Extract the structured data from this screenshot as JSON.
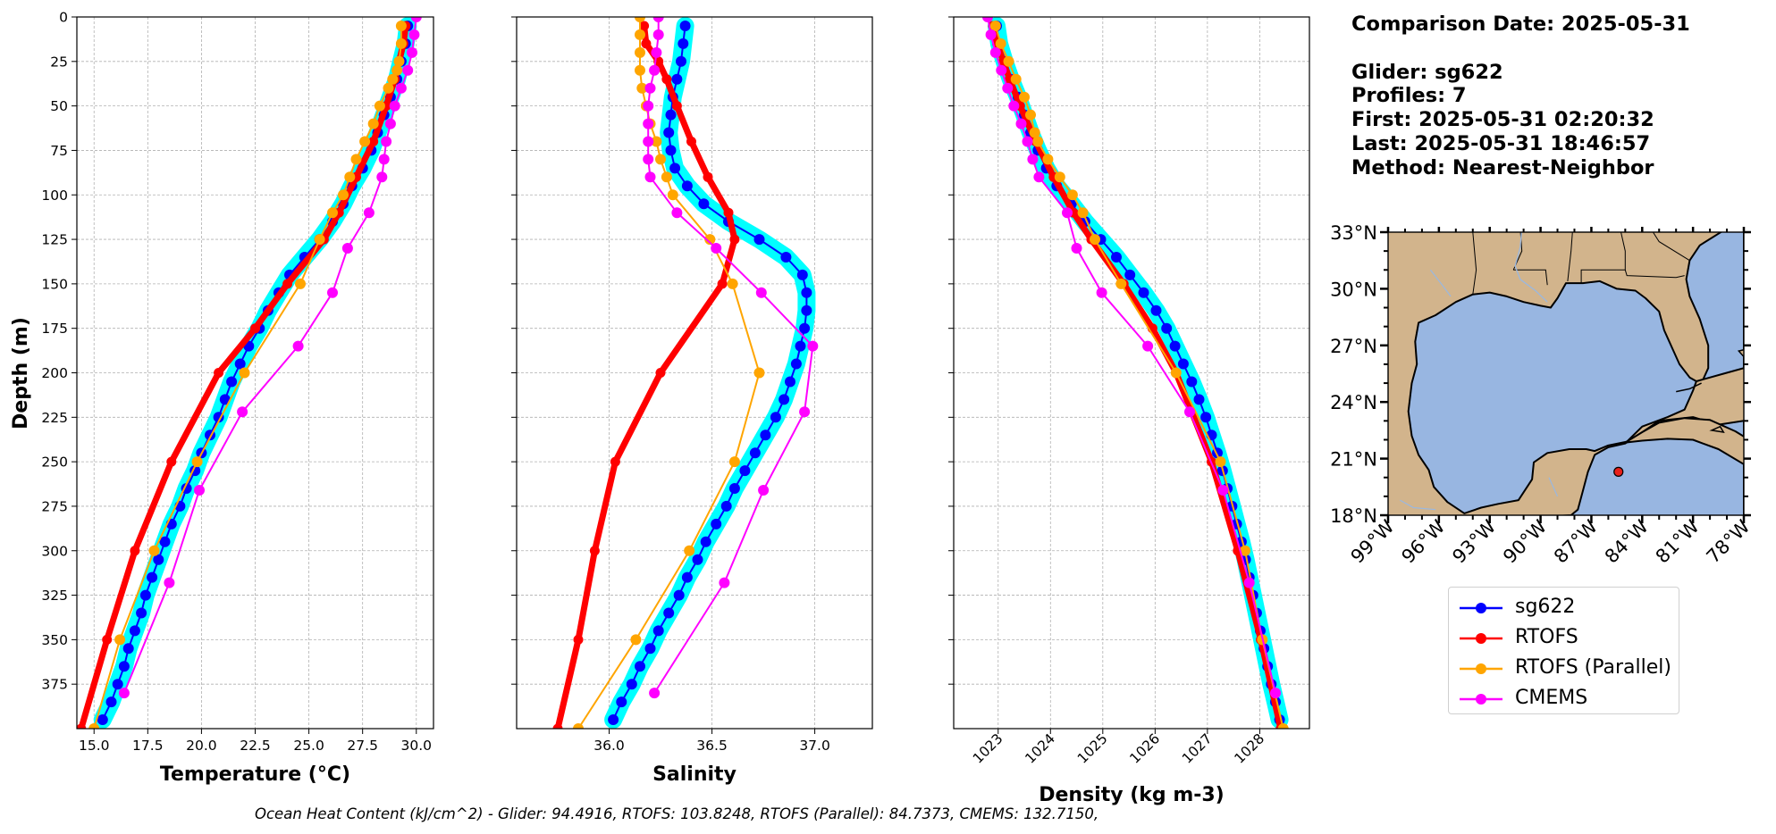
{
  "footer_text": "Ocean Heat Content (kJ/cm^2) - Glider: 94.4916,  RTOFS: 103.8248,  RTOFS (Parallel): 84.7373,  CMEMS: 132.7150,",
  "info_lines": [
    "Comparison Date: 2025-05-31",
    "",
    "Glider: sg622",
    "Profiles: 7",
    "First: 2025-05-31 02:20:32",
    "Last: 2025-05-31 18:46:57",
    "Method: Nearest-Neighbor"
  ],
  "colors": {
    "sg622": "#0000ff",
    "sg622_envelope": "#00ffff",
    "RTOFS": "#ff0000",
    "RTOFS_parallel": "#ffa500",
    "CMEMS": "#ff00ff",
    "grid": "#b0b0b0",
    "land": "#d2b48c",
    "water": "#98b6e1"
  },
  "legend": [
    {
      "name": "sg622",
      "color": "#0000ff"
    },
    {
      "name": "RTOFS",
      "color": "#ff0000"
    },
    {
      "name": "RTOFS (Parallel)",
      "color": "#ffa500"
    },
    {
      "name": "CMEMS",
      "color": "#ff00ff"
    }
  ],
  "chart_data": [
    {
      "type": "line",
      "xlabel": "Temperature (°C)",
      "ylabel": "Depth (m)",
      "xlim": [
        14.2,
        30.8
      ],
      "ylim": [
        400,
        0
      ],
      "y_inverted": true,
      "grid": true,
      "xticks": [
        15.0,
        17.5,
        20.0,
        22.5,
        25.0,
        27.5,
        30.0
      ],
      "xtick_labels": [
        "15.0",
        "17.5",
        "20.0",
        "22.5",
        "25.0",
        "27.5",
        "30.0"
      ],
      "yticks": [
        0,
        25,
        50,
        75,
        100,
        125,
        150,
        175,
        200,
        225,
        250,
        275,
        300,
        325,
        350,
        375
      ],
      "series": [
        {
          "name": "sg622",
          "depth": [
            5,
            15,
            25,
            35,
            45,
            55,
            65,
            75,
            85,
            95,
            105,
            115,
            125,
            135,
            145,
            155,
            165,
            175,
            185,
            195,
            205,
            215,
            225,
            235,
            245,
            255,
            265,
            275,
            285,
            295,
            305,
            315,
            325,
            335,
            345,
            355,
            365,
            375,
            385,
            395
          ],
          "values": [
            29.6,
            29.5,
            29.3,
            29.1,
            28.8,
            28.5,
            28.2,
            27.9,
            27.5,
            27.0,
            26.6,
            26.1,
            25.5,
            24.8,
            24.1,
            23.6,
            23.1,
            22.7,
            22.2,
            21.8,
            21.4,
            21.1,
            20.8,
            20.4,
            20.0,
            19.7,
            19.3,
            19.0,
            18.6,
            18.3,
            18.0,
            17.7,
            17.4,
            17.2,
            16.9,
            16.6,
            16.4,
            16.1,
            15.8,
            15.4
          ]
        },
        {
          "name": "RTOFS",
          "depth": [
            5,
            15,
            25,
            35,
            50,
            70,
            90,
            110,
            125,
            150,
            175,
            200,
            250,
            300,
            350,
            400
          ],
          "values": [
            29.5,
            29.4,
            29.2,
            29.0,
            28.6,
            28.0,
            27.2,
            26.4,
            25.7,
            24.0,
            22.5,
            20.8,
            18.6,
            16.9,
            15.6,
            14.4
          ]
        },
        {
          "name": "RTOFS (Parallel)",
          "depth": [
            5,
            15,
            25,
            30,
            35,
            40,
            50,
            60,
            70,
            80,
            90,
            100,
            110,
            125,
            150,
            200,
            250,
            300,
            350,
            400
          ],
          "values": [
            29.3,
            29.3,
            29.2,
            29.1,
            28.9,
            28.7,
            28.3,
            28.0,
            27.6,
            27.2,
            26.9,
            26.6,
            26.1,
            25.5,
            24.6,
            22.0,
            19.8,
            17.8,
            16.2,
            15.0
          ]
        },
        {
          "name": "CMEMS",
          "depth": [
            0,
            10,
            20,
            30,
            40,
            50,
            60,
            70,
            80,
            90,
            110,
            130,
            155,
            185,
            222,
            266,
            318,
            380
          ],
          "values": [
            30.0,
            29.9,
            29.8,
            29.6,
            29.3,
            29.0,
            28.8,
            28.6,
            28.5,
            28.4,
            27.8,
            26.8,
            26.1,
            24.5,
            21.9,
            19.9,
            18.5,
            16.4
          ]
        }
      ]
    },
    {
      "type": "line",
      "xlabel": "Salinity",
      "ylabel": "",
      "xlim": [
        35.55,
        37.28
      ],
      "ylim": [
        400,
        0
      ],
      "y_inverted": true,
      "grid": true,
      "xticks": [
        36.0,
        36.5,
        37.0
      ],
      "xtick_labels": [
        "36.0",
        "36.5",
        "37.0"
      ],
      "series": [
        {
          "name": "sg622",
          "depth": [
            5,
            15,
            25,
            35,
            45,
            55,
            65,
            75,
            85,
            95,
            105,
            115,
            125,
            135,
            145,
            155,
            165,
            175,
            185,
            195,
            205,
            215,
            225,
            235,
            245,
            255,
            265,
            275,
            285,
            295,
            305,
            315,
            325,
            335,
            345,
            355,
            365,
            375,
            385,
            395
          ],
          "values": [
            36.37,
            36.36,
            36.35,
            36.33,
            36.31,
            36.3,
            36.29,
            36.3,
            36.32,
            36.38,
            36.46,
            36.58,
            36.73,
            36.86,
            36.94,
            36.96,
            36.96,
            36.95,
            36.93,
            36.91,
            36.88,
            36.85,
            36.81,
            36.76,
            36.71,
            36.66,
            36.61,
            36.57,
            36.52,
            36.47,
            36.43,
            36.38,
            36.34,
            36.29,
            36.24,
            36.2,
            36.15,
            36.11,
            36.06,
            36.02
          ]
        },
        {
          "name": "RTOFS",
          "depth": [
            5,
            15,
            25,
            35,
            50,
            70,
            90,
            110,
            125,
            150,
            200,
            250,
            300,
            350,
            400
          ],
          "values": [
            36.17,
            36.18,
            36.24,
            36.28,
            36.33,
            36.4,
            36.48,
            36.58,
            36.61,
            36.55,
            36.25,
            36.03,
            35.93,
            35.85,
            35.75
          ]
        },
        {
          "name": "RTOFS (Parallel)",
          "depth": [
            0,
            10,
            20,
            30,
            40,
            50,
            60,
            70,
            80,
            90,
            100,
            125,
            150,
            200,
            250,
            300,
            350,
            400
          ],
          "values": [
            36.15,
            36.15,
            36.15,
            36.15,
            36.16,
            36.18,
            36.2,
            36.23,
            36.25,
            36.28,
            36.31,
            36.49,
            36.6,
            36.73,
            36.61,
            36.39,
            36.13,
            35.85
          ]
        },
        {
          "name": "CMEMS",
          "depth": [
            0,
            10,
            20,
            30,
            40,
            50,
            60,
            70,
            80,
            90,
            110,
            130,
            155,
            185,
            222,
            266,
            318,
            380
          ],
          "values": [
            36.24,
            36.24,
            36.23,
            36.22,
            36.2,
            36.19,
            36.19,
            36.19,
            36.19,
            36.2,
            36.33,
            36.52,
            36.74,
            36.99,
            36.95,
            36.75,
            36.56,
            36.22
          ]
        }
      ]
    },
    {
      "type": "line",
      "xlabel": "Density (kg m-3)",
      "ylabel": "",
      "xlim": [
        1022.15,
        1028.95
      ],
      "ylim": [
        400,
        0
      ],
      "y_inverted": true,
      "grid": true,
      "xticks": [
        1023,
        1024,
        1025,
        1026,
        1027,
        1028
      ],
      "xtick_labels": [
        "1023",
        "1024",
        "1025",
        "1026",
        "1027",
        "1028"
      ],
      "series": [
        {
          "name": "sg622",
          "depth": [
            5,
            15,
            25,
            35,
            45,
            55,
            65,
            75,
            85,
            95,
            105,
            115,
            125,
            135,
            145,
            155,
            165,
            175,
            185,
            195,
            205,
            215,
            225,
            235,
            245,
            255,
            265,
            275,
            285,
            295,
            305,
            315,
            325,
            335,
            345,
            355,
            365,
            375,
            385,
            395
          ],
          "values": [
            1022.97,
            1023.02,
            1023.12,
            1023.24,
            1023.38,
            1023.5,
            1023.62,
            1023.76,
            1023.92,
            1024.12,
            1024.4,
            1024.66,
            1024.96,
            1025.26,
            1025.52,
            1025.78,
            1026.02,
            1026.22,
            1026.38,
            1026.54,
            1026.7,
            1026.84,
            1026.97,
            1027.08,
            1027.19,
            1027.29,
            1027.38,
            1027.47,
            1027.56,
            1027.65,
            1027.73,
            1027.8,
            1027.87,
            1027.94,
            1028.01,
            1028.08,
            1028.15,
            1028.22,
            1028.3,
            1028.38
          ]
        },
        {
          "name": "RTOFS",
          "depth": [
            5,
            15,
            25,
            35,
            50,
            70,
            90,
            110,
            125,
            150,
            175,
            200,
            250,
            300,
            350,
            400
          ],
          "values": [
            1022.9,
            1022.98,
            1023.1,
            1023.22,
            1023.42,
            1023.72,
            1024.06,
            1024.44,
            1024.78,
            1025.4,
            1025.95,
            1026.4,
            1027.08,
            1027.58,
            1028.02,
            1028.4
          ]
        },
        {
          "name": "RTOFS (Parallel)",
          "depth": [
            5,
            15,
            25,
            35,
            45,
            55,
            65,
            70,
            80,
            90,
            100,
            110,
            125,
            150,
            200,
            250,
            300,
            350,
            400
          ],
          "values": [
            1022.95,
            1023.05,
            1023.2,
            1023.34,
            1023.5,
            1023.62,
            1023.7,
            1023.76,
            1023.95,
            1024.18,
            1024.42,
            1024.62,
            1024.85,
            1025.35,
            1026.4,
            1027.25,
            1027.72,
            1028.05,
            1028.45
          ]
        },
        {
          "name": "CMEMS",
          "depth": [
            0,
            10,
            20,
            30,
            40,
            50,
            60,
            70,
            80,
            90,
            110,
            130,
            155,
            185,
            222,
            266,
            318,
            380
          ],
          "values": [
            1022.8,
            1022.86,
            1022.95,
            1023.06,
            1023.18,
            1023.3,
            1023.44,
            1023.56,
            1023.66,
            1023.78,
            1024.32,
            1024.5,
            1024.98,
            1025.86,
            1026.66,
            1027.3,
            1027.8,
            1028.3
          ]
        }
      ]
    },
    {
      "type": "map",
      "extent_lon": [
        -99,
        -78
      ],
      "extent_lat": [
        18,
        33
      ],
      "xticks": [
        "99°W",
        "96°W",
        "93°W",
        "90°W",
        "87°W",
        "84°W",
        "81°W",
        "78°W"
      ],
      "yticks": [
        "18°N",
        "21°N",
        "24°N",
        "27°N",
        "30°N",
        "33°N"
      ],
      "glider_position": {
        "lon": -85.4,
        "lat": 20.3
      }
    }
  ]
}
